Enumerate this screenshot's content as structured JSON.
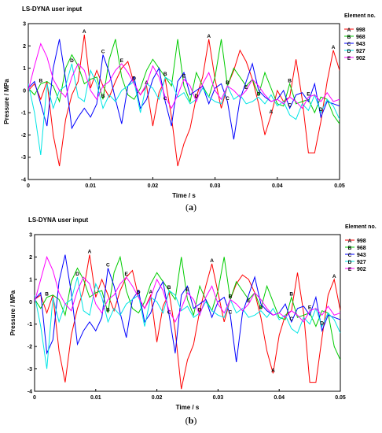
{
  "chart_data": [
    {
      "type": "line",
      "panel_label": "a",
      "title": "LS-DYNA user input",
      "xlabel": "Time / s",
      "ylabel": "Pressure / MPa",
      "xlim": [
        0,
        0.05
      ],
      "ylim": [
        -4,
        3
      ],
      "xticks": [
        "0",
        "0.01",
        "0.02",
        "0.03",
        "0.04",
        "0.05"
      ],
      "yticks": [
        "-4",
        "-3",
        "-2",
        "-1",
        "0",
        "1",
        "2",
        "3"
      ],
      "legend_title": "Element no.",
      "legend_position": "right",
      "grid": false,
      "x": [
        0,
        0.001,
        0.002,
        0.003,
        0.004,
        0.005,
        0.006,
        0.007,
        0.008,
        0.009,
        0.01,
        0.011,
        0.012,
        0.013,
        0.014,
        0.015,
        0.016,
        0.017,
        0.018,
        0.019,
        0.02,
        0.021,
        0.022,
        0.023,
        0.024,
        0.025,
        0.026,
        0.027,
        0.028,
        0.029,
        0.03,
        0.031,
        0.032,
        0.033,
        0.034,
        0.035,
        0.036,
        0.037,
        0.038,
        0.039,
        0.04,
        0.041,
        0.042,
        0.043,
        0.044,
        0.045,
        0.046,
        0.047,
        0.048,
        0.049,
        0.05
      ],
      "series": [
        {
          "name": "998",
          "marker": "A",
          "color": "#ff0000",
          "values": [
            0.0,
            0.3,
            -0.4,
            0.4,
            -2.0,
            -3.4,
            -1.3,
            -0.2,
            0.4,
            2.5,
            0.1,
            0.9,
            0.2,
            -0.3,
            0.4,
            1.0,
            1.3,
            0.3,
            -0.2,
            0.2,
            -1.6,
            -0.1,
            0.5,
            -1.2,
            -3.4,
            -2.4,
            -1.7,
            -0.3,
            0.6,
            2.3,
            0.5,
            -0.8,
            0.2,
            0.9,
            1.8,
            1.3,
            0.5,
            -0.6,
            -2.0,
            -1.1,
            0.0,
            -0.5,
            -0.3,
            1.4,
            -0.4,
            -2.8,
            -2.8,
            -1.4,
            0.4,
            1.8,
            0.9
          ]
        },
        {
          "name": "968",
          "marker": "B",
          "color": "#00cc00",
          "values": [
            0.1,
            -0.2,
            0.3,
            0.4,
            0.2,
            -0.5,
            1.0,
            1.6,
            1.1,
            0.3,
            0.5,
            0.6,
            -0.4,
            1.4,
            2.3,
            0.6,
            -0.2,
            -0.4,
            0.1,
            0.9,
            1.4,
            1.0,
            0.6,
            0.2,
            2.3,
            0.2,
            -0.5,
            0.8,
            0.2,
            -0.3,
            0.6,
            2.3,
            0.2,
            1.0,
            0.6,
            0.2,
            0.5,
            -0.2,
            0.8,
            0.1,
            -0.6,
            -0.7,
            0.3,
            -0.6,
            -0.5,
            -0.4,
            -1.0,
            -0.3,
            -0.4,
            -1.1,
            -1.5
          ]
        },
        {
          "name": "943",
          "marker": "C",
          "color": "#0000ff",
          "values": [
            0.1,
            0.4,
            -0.6,
            -1.6,
            1.0,
            2.3,
            0.5,
            -1.7,
            -1.2,
            -0.8,
            -1.2,
            -0.6,
            1.6,
            0.8,
            -0.4,
            -1.5,
            0.2,
            0.6,
            -0.8,
            -0.4,
            0.5,
            1.0,
            -0.5,
            -1.6,
            0.4,
            0.8,
            -0.2,
            0.0,
            0.2,
            -0.6,
            0.1,
            0.3,
            -0.5,
            -2.2,
            -0.4,
            0.4,
            1.2,
            0.0,
            -0.3,
            -0.5,
            -0.4,
            0.0,
            -0.8,
            -0.2,
            -0.1,
            -0.5,
            0.3,
            -1.2,
            -0.5,
            -0.6,
            -0.7
          ]
        },
        {
          "name": "927",
          "marker": "D",
          "color": "#00e5e5",
          "values": [
            0.3,
            -1.0,
            -2.9,
            0.3,
            -0.8,
            0.0,
            0.2,
            1.2,
            -0.3,
            -0.5,
            0.9,
            0.3,
            -0.8,
            -0.2,
            -0.5,
            0.0,
            0.2,
            0.4,
            -1.0,
            0.3,
            0.1,
            -0.4,
            0.6,
            0.4,
            -0.3,
            -0.1,
            -0.6,
            -0.4,
            0.1,
            -0.3,
            -0.5,
            -0.6,
            0.2,
            -0.4,
            -0.2,
            -0.6,
            -0.5,
            -0.3,
            -0.6,
            -0.2,
            -0.7,
            -0.5,
            -1.1,
            -1.3,
            -0.6,
            -0.9,
            -0.2,
            -1.0,
            -0.4,
            -0.7,
            -1.3
          ]
        },
        {
          "name": "902",
          "marker": "E",
          "color": "#ff00ff",
          "values": [
            0.0,
            1.1,
            2.1,
            1.5,
            0.5,
            0.0,
            -0.3,
            0.6,
            1.2,
            0.9,
            0.0,
            -0.4,
            0.2,
            0.4,
            0.9,
            1.2,
            0.8,
            0.3,
            -0.2,
            0.3,
            1.1,
            0.6,
            -0.3,
            -0.8,
            -0.2,
            0.5,
            0.2,
            -0.5,
            0.3,
            0.8,
            0.0,
            -0.4,
            0.2,
            0.0,
            -0.3,
            0.0,
            0.5,
            0.2,
            -0.2,
            -0.5,
            -0.4,
            -0.6,
            -0.3,
            -0.5,
            -0.8,
            -0.3,
            -0.2,
            -0.5,
            -0.1,
            -0.5,
            -0.4
          ]
        }
      ]
    },
    {
      "type": "line",
      "panel_label": "b",
      "title": "LS-DYNA user input",
      "xlabel": "Time / s",
      "ylabel": "Pressure / MPa",
      "xlim": [
        0,
        0.05
      ],
      "ylim": [
        -4,
        3
      ],
      "xticks": [
        "0",
        "0.01",
        "0.02",
        "0.03",
        "0.04",
        "0.05"
      ],
      "yticks": [
        "-4",
        "-3",
        "-2",
        "-1",
        "0",
        "1",
        "2",
        "3"
      ],
      "legend_title": "Element no.",
      "legend_position": "right",
      "grid": false,
      "x": [
        0,
        0.001,
        0.002,
        0.003,
        0.004,
        0.005,
        0.006,
        0.007,
        0.008,
        0.009,
        0.01,
        0.011,
        0.012,
        0.013,
        0.014,
        0.015,
        0.016,
        0.017,
        0.018,
        0.019,
        0.02,
        0.021,
        0.022,
        0.023,
        0.024,
        0.025,
        0.026,
        0.027,
        0.028,
        0.029,
        0.03,
        0.031,
        0.032,
        0.033,
        0.034,
        0.035,
        0.036,
        0.037,
        0.038,
        0.039,
        0.04,
        0.041,
        0.042,
        0.043,
        0.044,
        0.045,
        0.046,
        0.047,
        0.048,
        0.049,
        0.05
      ],
      "series": [
        {
          "name": "998",
          "marker": "A",
          "color": "#ff0000",
          "values": [
            0.1,
            0.3,
            -0.5,
            0.3,
            -2.2,
            -3.6,
            -1.5,
            -0.3,
            0.5,
            2.1,
            0.2,
            1.0,
            0.3,
            -0.4,
            0.5,
            1.1,
            1.4,
            0.2,
            -0.3,
            0.3,
            -1.8,
            -0.2,
            0.4,
            -1.3,
            -3.9,
            -2.6,
            -1.9,
            -0.4,
            0.7,
            1.7,
            0.4,
            -0.9,
            0.1,
            0.8,
            1.2,
            1.0,
            0.4,
            -0.7,
            -2.2,
            -3.2,
            -1.5,
            -0.6,
            -0.4,
            1.3,
            -0.5,
            -3.6,
            -3.6,
            -1.6,
            0.3,
            1.0,
            -0.4
          ]
        },
        {
          "name": "968",
          "marker": "B",
          "color": "#00cc00",
          "values": [
            0.1,
            -0.3,
            0.2,
            0.3,
            0.1,
            -0.6,
            0.9,
            1.5,
            1.0,
            0.2,
            0.4,
            0.5,
            -0.5,
            1.3,
            2.0,
            0.5,
            -0.3,
            -0.5,
            0.0,
            0.8,
            1.3,
            0.9,
            0.5,
            0.1,
            2.0,
            0.1,
            -0.6,
            0.7,
            0.1,
            -0.4,
            0.5,
            2.0,
            0.1,
            0.9,
            0.5,
            0.1,
            0.4,
            -0.3,
            0.7,
            0.0,
            -0.7,
            -0.8,
            0.2,
            -0.7,
            -0.6,
            -0.5,
            -1.1,
            -0.4,
            -0.5,
            -2.0,
            -2.6
          ]
        },
        {
          "name": "943",
          "marker": "C",
          "color": "#0000ff",
          "values": [
            0.1,
            0.4,
            -2.3,
            -1.7,
            0.9,
            2.1,
            0.4,
            -1.9,
            -1.3,
            -0.9,
            -1.3,
            -0.7,
            1.5,
            0.7,
            -0.5,
            -1.6,
            0.1,
            0.5,
            -0.9,
            -0.5,
            0.4,
            0.9,
            -0.6,
            -2.3,
            0.3,
            0.7,
            -0.3,
            -0.1,
            0.1,
            -0.7,
            0.0,
            0.2,
            -0.6,
            -2.7,
            -0.5,
            0.3,
            1.1,
            -0.1,
            -0.4,
            -0.6,
            -0.5,
            -0.1,
            -0.9,
            -0.3,
            -0.2,
            -0.6,
            0.2,
            -1.3,
            -0.6,
            -0.7,
            -0.8
          ]
        },
        {
          "name": "927",
          "marker": "D",
          "color": "#00e5e5",
          "values": [
            0.3,
            -1.1,
            -3.0,
            0.2,
            -0.9,
            -0.1,
            0.1,
            1.1,
            -0.4,
            -0.6,
            0.8,
            0.2,
            -0.9,
            -0.3,
            -0.6,
            -0.1,
            0.1,
            0.3,
            -1.1,
            0.2,
            0.0,
            -0.5,
            0.5,
            0.3,
            -0.4,
            -0.2,
            -0.7,
            -0.5,
            0.0,
            -0.4,
            -0.6,
            -0.7,
            0.1,
            -0.5,
            -0.3,
            -0.7,
            -0.6,
            -0.4,
            -0.7,
            -0.3,
            -0.8,
            -0.6,
            -1.2,
            -1.4,
            -0.7,
            -1.0,
            -0.3,
            -1.1,
            -0.5,
            -0.8,
            -1.4
          ]
        },
        {
          "name": "902",
          "marker": "E",
          "color": "#ff00ff",
          "values": [
            0.0,
            1.0,
            2.0,
            1.4,
            0.4,
            -0.1,
            -0.4,
            0.5,
            1.1,
            0.8,
            -0.1,
            -0.5,
            0.1,
            0.3,
            0.8,
            1.1,
            0.7,
            0.2,
            -0.3,
            0.2,
            1.0,
            0.5,
            -0.4,
            -0.9,
            -0.3,
            0.4,
            0.1,
            -0.6,
            0.2,
            0.7,
            -0.1,
            -0.5,
            0.1,
            -0.1,
            -0.4,
            -0.1,
            0.4,
            0.1,
            -0.3,
            -0.6,
            -0.5,
            -0.7,
            -0.4,
            -0.6,
            -0.9,
            -0.4,
            -0.3,
            -0.6,
            -0.2,
            -0.6,
            -0.5
          ]
        }
      ]
    }
  ]
}
